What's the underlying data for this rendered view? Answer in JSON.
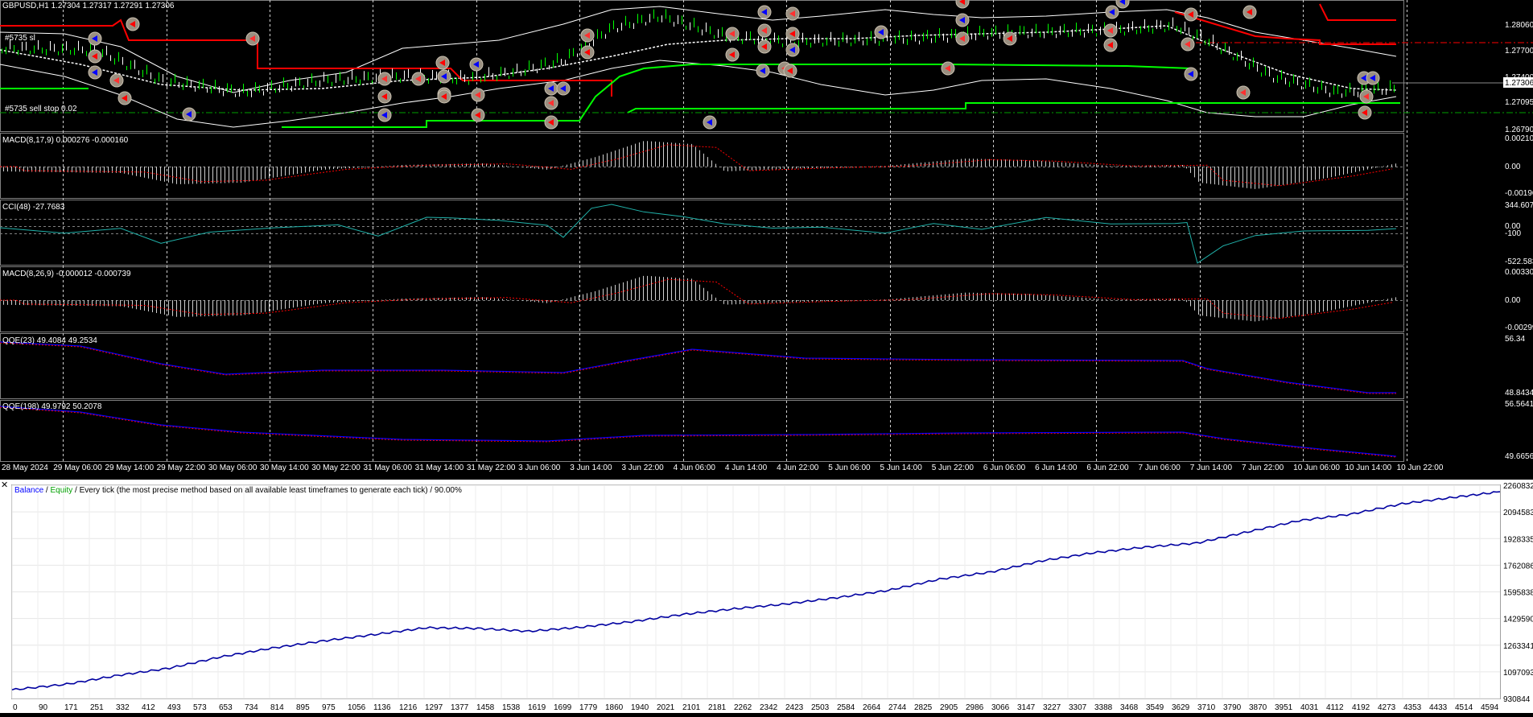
{
  "chart": {
    "header": "GBPUSD,H1  1.27304 1.27317 1.27291 1.27306",
    "labels": {
      "sl": "#5735 sl",
      "sell_stop": "#5735 sell stop 0.02"
    },
    "price_axis": [
      "1.28060",
      "1.27700",
      "1.27400",
      "1.27306",
      "1.27095",
      "1.26790"
    ],
    "current_price": "1.27306",
    "colors": {
      "bands": "#ffffff",
      "stop_red": "#ff0000",
      "stop_green": "#00ff00",
      "macd_signal": "#ff0000",
      "cci": "#20b2aa",
      "qqe_a": "#0000ff",
      "qqe_b": "#ff0000",
      "balance": "#0000a0",
      "equity": "#00a000"
    }
  },
  "indicators": [
    {
      "id": "macd1",
      "title": "MACD(8,17,9) 0.000276 -0.000160",
      "axis": [
        "0.00210",
        "0.00",
        "-0.00196"
      ]
    },
    {
      "id": "cci",
      "title": "CCI(48) -27.7683",
      "axis": [
        "344.607",
        "0.00",
        "-100",
        "-522.583"
      ]
    },
    {
      "id": "macd2",
      "title": "MACD(8,26,9) -0.000012 -0.000739",
      "axis": [
        "0.00330",
        "0.00",
        "-0.00299"
      ]
    },
    {
      "id": "qqe1",
      "title": "QQE(23) 49.4084 49.2534",
      "axis": [
        "56.34",
        "48.8434"
      ]
    },
    {
      "id": "qqe2",
      "title": "QQE(198) 49.9792 50.2078",
      "axis": [
        "56.5641",
        "49.6656"
      ]
    }
  ],
  "time_axis": [
    "28 May 2024",
    "29 May 06:00",
    "29 May 14:00",
    "29 May 22:00",
    "30 May 06:00",
    "30 May 14:00",
    "30 May 22:00",
    "31 May 06:00",
    "31 May 14:00",
    "31 May 22:00",
    "3 Jun 06:00",
    "3 Jun 14:00",
    "3 Jun 22:00",
    "4 Jun 06:00",
    "4 Jun 14:00",
    "4 Jun 22:00",
    "5 Jun 06:00",
    "5 Jun 14:00",
    "5 Jun 22:00",
    "6 Jun 06:00",
    "6 Jun 14:00",
    "6 Jun 22:00",
    "7 Jun 06:00",
    "7 Jun 14:00",
    "7 Jun 22:00",
    "10 Jun 06:00",
    "10 Jun 14:00",
    "10 Jun 22:00"
  ],
  "tester": {
    "legend": {
      "balance": "Balance",
      "sep1": " / ",
      "equity": "Equity",
      "rest": " / Every tick (the most precise method based on all available least timeframes to generate each tick) / 90.00%"
    },
    "y_axis": [
      "2260832",
      "2094583",
      "1928335",
      "1762086",
      "1595838",
      "1429590",
      "1263341",
      "1097093",
      "930844"
    ],
    "x_axis": [
      "0",
      "90",
      "171",
      "251",
      "332",
      "412",
      "493",
      "573",
      "653",
      "734",
      "814",
      "895",
      "975",
      "1056",
      "1136",
      "1216",
      "1297",
      "1377",
      "1458",
      "1538",
      "1619",
      "1699",
      "1779",
      "1860",
      "1940",
      "2021",
      "2101",
      "2181",
      "2262",
      "2342",
      "2423",
      "2503",
      "2584",
      "2664",
      "2744",
      "2825",
      "2905",
      "2986",
      "3066",
      "3147",
      "3227",
      "3307",
      "3388",
      "3468",
      "3549",
      "3629",
      "3710",
      "3790",
      "3870",
      "3951",
      "4031",
      "4112",
      "4192",
      "4273",
      "4353",
      "4433",
      "4514",
      "4594"
    ]
  },
  "chart_data": {
    "type": "line",
    "title": "",
    "xlabel": "",
    "ylabel": "",
    "x": [
      0,
      171,
      332,
      493,
      653,
      814,
      975,
      1136,
      1297,
      1458,
      1619,
      1779,
      1940,
      2101,
      2262,
      2423,
      2584,
      2744,
      2905,
      3066,
      3227,
      3388,
      3549,
      3710,
      3870,
      4031,
      4192,
      4353,
      4514,
      4660
    ],
    "series": [
      {
        "name": "Balance",
        "values": [
          985000,
          1020000,
          1075000,
          1120000,
          1190000,
          1245000,
          1290000,
          1330000,
          1372000,
          1368000,
          1350000,
          1375000,
          1410000,
          1455000,
          1490000,
          1520000,
          1560000,
          1605000,
          1675000,
          1720000,
          1790000,
          1840000,
          1875000,
          1900000,
          1970000,
          2040000,
          2080000,
          2145000,
          2185000,
          2220000
        ]
      }
    ],
    "ylim": [
      930844,
      2260832
    ],
    "xlim": [
      0,
      4660
    ],
    "grid": true
  }
}
